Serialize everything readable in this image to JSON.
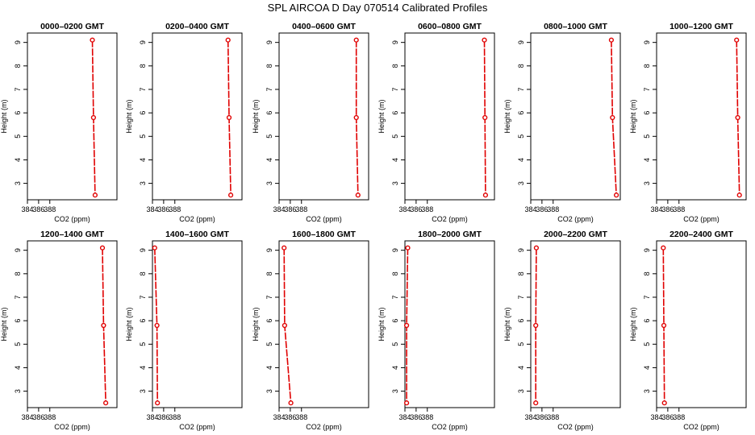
{
  "page": {
    "title": "SPL AIRCOA D  Day 070514  Calibrated Profiles"
  },
  "colors": {
    "series": "#e00000",
    "axis": "#000000",
    "background": "#ffffff"
  },
  "chart_data": [
    {
      "type": "line",
      "title": "0000–0200 GMT",
      "xlabel": "CO2 (ppm)",
      "ylabel": "Height (m)",
      "xlim": [
        384,
        400
      ],
      "ylim": [
        2.3,
        9.4
      ],
      "xticks": [
        "384",
        "386",
        "388"
      ],
      "yticks": [
        "3",
        "4",
        "5",
        "6",
        "7",
        "8",
        "9"
      ],
      "series": [
        {
          "x": [
            395.6,
            395.8,
            396.1
          ],
          "y": [
            9.1,
            5.8,
            2.5
          ]
        }
      ]
    },
    {
      "type": "line",
      "title": "0200–0400 GMT",
      "xlabel": "CO2 (ppm)",
      "ylabel": "Height (m)",
      "xlim": [
        384,
        400
      ],
      "ylim": [
        2.3,
        9.4
      ],
      "xticks": [
        "384",
        "386",
        "388"
      ],
      "yticks": [
        "3",
        "4",
        "5",
        "6",
        "7",
        "8",
        "9"
      ],
      "series": [
        {
          "x": [
            397.5,
            397.7,
            398.0
          ],
          "y": [
            9.1,
            5.8,
            2.5
          ]
        }
      ]
    },
    {
      "type": "line",
      "title": "0400–0600 GMT",
      "xlabel": "CO2 (ppm)",
      "ylabel": "Height (m)",
      "xlim": [
        384,
        400
      ],
      "ylim": [
        2.3,
        9.4
      ],
      "xticks": [
        "384",
        "386",
        "388"
      ],
      "yticks": [
        "3",
        "4",
        "5",
        "6",
        "7",
        "8",
        "9"
      ],
      "series": [
        {
          "x": [
            397.8,
            397.8,
            398.1
          ],
          "y": [
            9.1,
            5.8,
            2.5
          ]
        }
      ]
    },
    {
      "type": "line",
      "title": "0600–0800 GMT",
      "xlabel": "CO2 (ppm)",
      "ylabel": "Height (m)",
      "xlim": [
        384,
        400
      ],
      "ylim": [
        2.3,
        9.4
      ],
      "xticks": [
        "384",
        "386",
        "388"
      ],
      "yticks": [
        "3",
        "4",
        "5",
        "6",
        "7",
        "8",
        "9"
      ],
      "series": [
        {
          "x": [
            398.2,
            398.3,
            398.4
          ],
          "y": [
            9.1,
            5.8,
            2.5
          ]
        }
      ]
    },
    {
      "type": "line",
      "title": "0800–1000 GMT",
      "xlabel": "CO2 (ppm)",
      "ylabel": "Height (m)",
      "xlim": [
        384,
        400
      ],
      "ylim": [
        2.3,
        9.4
      ],
      "xticks": [
        "384",
        "386",
        "388"
      ],
      "yticks": [
        "3",
        "4",
        "5",
        "6",
        "7",
        "8",
        "9"
      ],
      "series": [
        {
          "x": [
            398.4,
            398.6,
            399.3
          ],
          "y": [
            9.1,
            5.8,
            2.5
          ]
        }
      ]
    },
    {
      "type": "line",
      "title": "1000–1200 GMT",
      "xlabel": "CO2 (ppm)",
      "ylabel": "Height (m)",
      "xlim": [
        384,
        400
      ],
      "ylim": [
        2.3,
        9.4
      ],
      "xticks": [
        "384",
        "386",
        "388"
      ],
      "yticks": [
        "3",
        "4",
        "5",
        "6",
        "7",
        "8",
        "9"
      ],
      "series": [
        {
          "x": [
            398.3,
            398.5,
            398.8
          ],
          "y": [
            9.1,
            5.8,
            2.5
          ]
        }
      ]
    },
    {
      "type": "line",
      "title": "1200–1400 GMT",
      "xlabel": "CO2 (ppm)",
      "ylabel": "Height (m)",
      "xlim": [
        384,
        400
      ],
      "ylim": [
        2.3,
        9.4
      ],
      "xticks": [
        "384",
        "386",
        "388"
      ],
      "yticks": [
        "3",
        "4",
        "5",
        "6",
        "7",
        "8",
        "9"
      ],
      "series": [
        {
          "x": [
            397.4,
            397.6,
            398.0
          ],
          "y": [
            9.1,
            5.8,
            2.5
          ]
        }
      ]
    },
    {
      "type": "line",
      "title": "1400–1600 GMT",
      "xlabel": "CO2 (ppm)",
      "ylabel": "Height (m)",
      "xlim": [
        384,
        400
      ],
      "ylim": [
        2.3,
        9.4
      ],
      "xticks": [
        "384",
        "386",
        "388"
      ],
      "yticks": [
        "3",
        "4",
        "5",
        "6",
        "7",
        "8",
        "9"
      ],
      "series": [
        {
          "x": [
            384.4,
            384.8,
            384.9
          ],
          "y": [
            9.1,
            5.8,
            2.5
          ]
        }
      ]
    },
    {
      "type": "line",
      "title": "1600–1800 GMT",
      "xlabel": "CO2 (ppm)",
      "ylabel": "Height (m)",
      "xlim": [
        384,
        400
      ],
      "ylim": [
        2.3,
        9.4
      ],
      "xticks": [
        "384",
        "386",
        "388"
      ],
      "yticks": [
        "3",
        "4",
        "5",
        "6",
        "7",
        "8",
        "9"
      ],
      "series": [
        {
          "x": [
            384.9,
            385.0,
            386.1
          ],
          "y": [
            9.1,
            5.8,
            2.5
          ]
        }
      ]
    },
    {
      "type": "line",
      "title": "1800–2000 GMT",
      "xlabel": "CO2 (ppm)",
      "ylabel": "Height (m)",
      "xlim": [
        384,
        400
      ],
      "ylim": [
        2.3,
        9.4
      ],
      "xticks": [
        "384",
        "386",
        "388"
      ],
      "yticks": [
        "3",
        "4",
        "5",
        "6",
        "7",
        "8",
        "9"
      ],
      "series": [
        {
          "x": [
            384.5,
            384.3,
            384.3
          ],
          "y": [
            9.1,
            5.8,
            2.5
          ]
        }
      ]
    },
    {
      "type": "line",
      "title": "2000–2200 GMT",
      "xlabel": "CO2 (ppm)",
      "ylabel": "Height (m)",
      "xlim": [
        384,
        400
      ],
      "ylim": [
        2.3,
        9.4
      ],
      "xticks": [
        "384",
        "386",
        "388"
      ],
      "yticks": [
        "3",
        "4",
        "5",
        "6",
        "7",
        "8",
        "9"
      ],
      "series": [
        {
          "x": [
            385.0,
            384.9,
            384.9
          ],
          "y": [
            9.1,
            5.8,
            2.5
          ]
        }
      ]
    },
    {
      "type": "line",
      "title": "2200–2400 GMT",
      "xlabel": "CO2 (ppm)",
      "ylabel": "Height (m)",
      "xlim": [
        384,
        400
      ],
      "ylim": [
        2.3,
        9.4
      ],
      "xticks": [
        "384",
        "386",
        "388"
      ],
      "yticks": [
        "3",
        "4",
        "5",
        "6",
        "7",
        "8",
        "9"
      ],
      "series": [
        {
          "x": [
            385.2,
            385.3,
            385.4
          ],
          "y": [
            9.1,
            5.8,
            2.5
          ]
        }
      ]
    }
  ]
}
